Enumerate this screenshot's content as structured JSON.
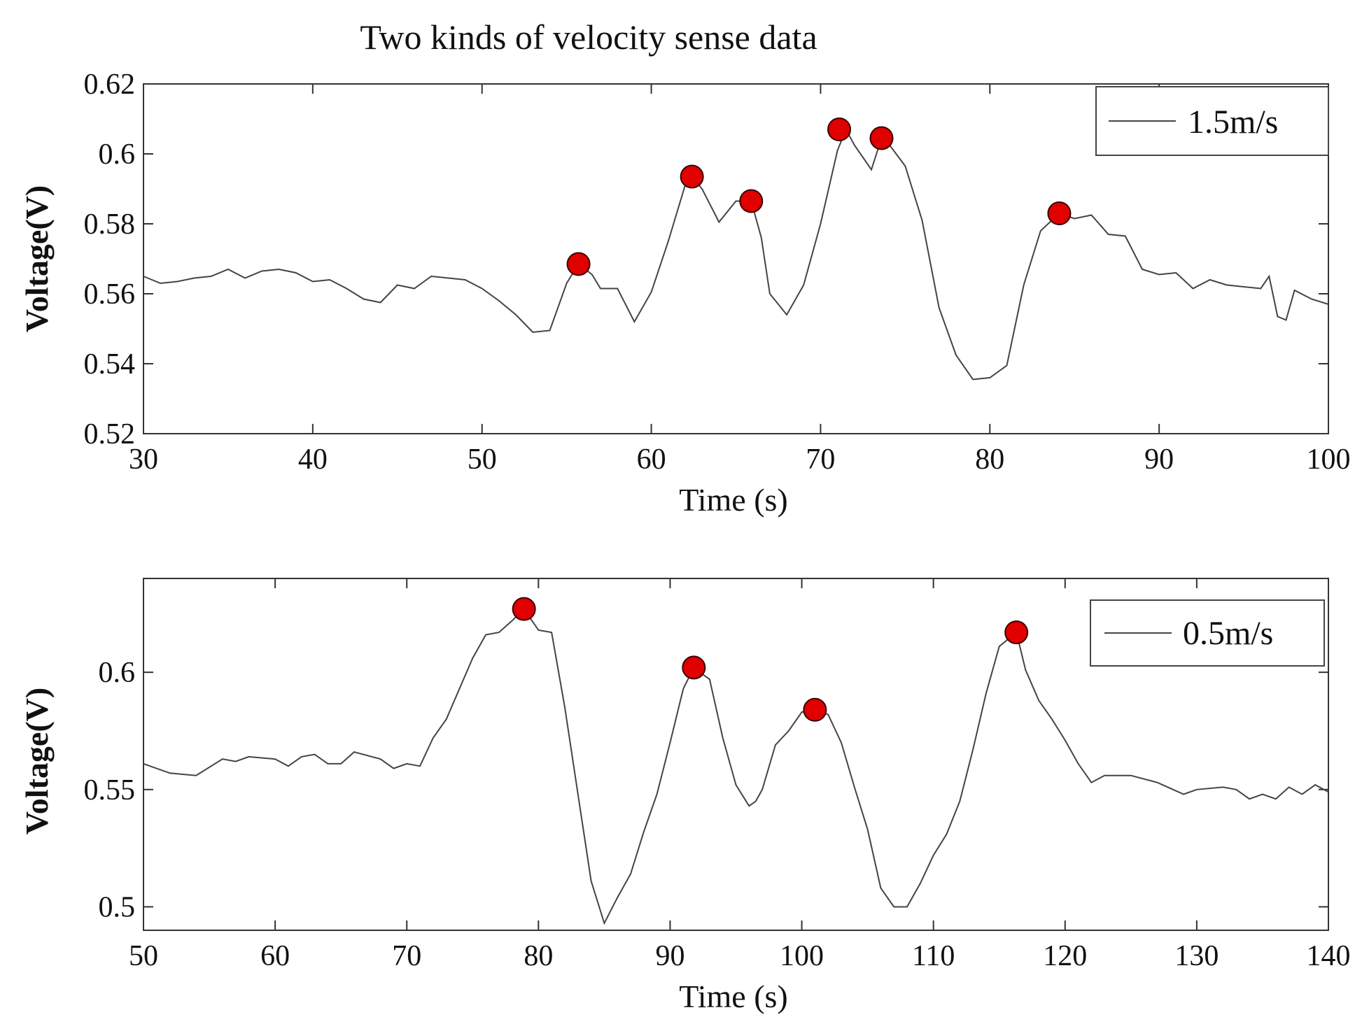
{
  "figure": {
    "title": "Two kinds of velocity sense data"
  },
  "colors": {
    "line": "#444444",
    "marker_fill": "#e00000",
    "marker_stroke": "#3a0000",
    "axis": "#333333"
  },
  "chart_data": [
    {
      "type": "line",
      "title": "",
      "xlabel": "Time (s)",
      "ylabel": "Voltage(V)",
      "xlim": [
        30,
        100
      ],
      "ylim": [
        0.52,
        0.62
      ],
      "xticks": [
        30,
        40,
        50,
        60,
        70,
        80,
        90,
        100
      ],
      "yticks": [
        0.52,
        0.54,
        0.56,
        0.58,
        0.6,
        0.62
      ],
      "ytick_labels": [
        "0.52",
        "0.54",
        "0.56",
        "0.58",
        "0.6",
        "0.62"
      ],
      "legend": "top-right",
      "series": [
        {
          "name": "1.5m/s",
          "x": [
            30,
            31,
            32,
            33,
            34,
            35,
            36,
            37,
            38,
            39,
            40,
            41,
            42,
            43,
            44,
            45,
            46,
            47,
            48,
            49,
            50,
            51,
            52,
            53,
            54,
            55,
            55.7,
            56.5,
            57,
            58,
            59,
            60,
            61,
            62,
            62.4,
            63,
            64,
            65,
            65.9,
            66.5,
            67,
            68,
            69,
            70,
            71,
            71.5,
            72,
            73,
            73.6,
            74,
            75,
            76,
            77,
            78,
            79,
            80,
            81,
            82,
            83,
            84.1,
            85,
            86,
            87,
            88,
            89,
            90,
            91,
            92,
            93,
            94,
            95,
            96,
            96.5,
            97,
            97.5,
            98,
            99,
            100
          ],
          "values": [
            0.565,
            0.563,
            0.5635,
            0.5645,
            0.565,
            0.567,
            0.5645,
            0.5665,
            0.567,
            0.566,
            0.5635,
            0.564,
            0.5615,
            0.5585,
            0.5575,
            0.5625,
            0.5615,
            0.565,
            0.5645,
            0.564,
            0.5615,
            0.558,
            0.554,
            0.549,
            0.5495,
            0.563,
            0.5685,
            0.5655,
            0.5615,
            0.5615,
            0.552,
            0.5605,
            0.575,
            0.591,
            0.5935,
            0.59,
            0.5805,
            0.5865,
            0.5865,
            0.576,
            0.56,
            0.554,
            0.5625,
            0.58,
            0.601,
            0.607,
            0.6025,
            0.5955,
            0.6045,
            0.603,
            0.5965,
            0.581,
            0.556,
            0.5425,
            0.5355,
            0.536,
            0.5395,
            0.5625,
            0.578,
            0.583,
            0.5815,
            0.5825,
            0.577,
            0.5765,
            0.567,
            0.5655,
            0.566,
            0.5615,
            0.564,
            0.5625,
            0.562,
            0.5615,
            0.565,
            0.5535,
            0.5525,
            0.561,
            0.5585,
            0.557
          ]
        }
      ],
      "peaks": {
        "x": [
          55.7,
          62.4,
          65.9,
          71.1,
          73.6,
          84.1
        ],
        "values": [
          0.5685,
          0.5935,
          0.5865,
          0.607,
          0.6045,
          0.583
        ]
      }
    },
    {
      "type": "line",
      "title": "",
      "xlabel": "Time (s)",
      "ylabel": "Voltage(V)",
      "xlim": [
        50,
        140
      ],
      "ylim": [
        0.49,
        0.64
      ],
      "xticks": [
        50,
        60,
        70,
        80,
        90,
        100,
        110,
        120,
        130,
        140
      ],
      "yticks": [
        0.5,
        0.55,
        0.6
      ],
      "ytick_labels": [
        "0.5",
        "0.55",
        "0.6"
      ],
      "legend": "top-right",
      "series": [
        {
          "name": "0.5m/s",
          "x": [
            50,
            52,
            54,
            56,
            57,
            58,
            60,
            61,
            62,
            63,
            64,
            65,
            66,
            68,
            69,
            70,
            71,
            72,
            73,
            74,
            75,
            76,
            77,
            78,
            78.9,
            80,
            81,
            82,
            83,
            84,
            85,
            86,
            87,
            88,
            89,
            90,
            91,
            91.8,
            92.5,
            93,
            94,
            95,
            96,
            96.5,
            97,
            98,
            99,
            100,
            101,
            102,
            103,
            104,
            105,
            106,
            107,
            108,
            109,
            110,
            111,
            112,
            113,
            114,
            115,
            116.3,
            117,
            118,
            119,
            120,
            121,
            122,
            123,
            125,
            127,
            129,
            130,
            132,
            133,
            134,
            135,
            136,
            137,
            138,
            139,
            140
          ],
          "values": [
            0.561,
            0.557,
            0.556,
            0.563,
            0.562,
            0.564,
            0.563,
            0.56,
            0.564,
            0.565,
            0.561,
            0.561,
            0.566,
            0.563,
            0.559,
            0.561,
            0.56,
            0.572,
            0.58,
            0.593,
            0.606,
            0.616,
            0.617,
            0.622,
            0.627,
            0.618,
            0.617,
            0.585,
            0.548,
            0.511,
            0.493,
            0.504,
            0.514,
            0.532,
            0.548,
            0.57,
            0.593,
            0.602,
            0.599,
            0.597,
            0.572,
            0.552,
            0.543,
            0.545,
            0.55,
            0.569,
            0.575,
            0.583,
            0.584,
            0.582,
            0.57,
            0.551,
            0.533,
            0.508,
            0.5,
            0.5,
            0.51,
            0.522,
            0.531,
            0.545,
            0.567,
            0.591,
            0.611,
            0.617,
            0.601,
            0.588,
            0.58,
            0.571,
            0.561,
            0.553,
            0.556,
            0.556,
            0.553,
            0.548,
            0.55,
            0.551,
            0.55,
            0.546,
            0.548,
            0.546,
            0.551,
            0.548,
            0.552,
            0.549
          ]
        }
      ],
      "peaks": {
        "x": [
          78.9,
          91.8,
          101,
          116.3
        ],
        "values": [
          0.627,
          0.602,
          0.584,
          0.617
        ]
      }
    }
  ]
}
